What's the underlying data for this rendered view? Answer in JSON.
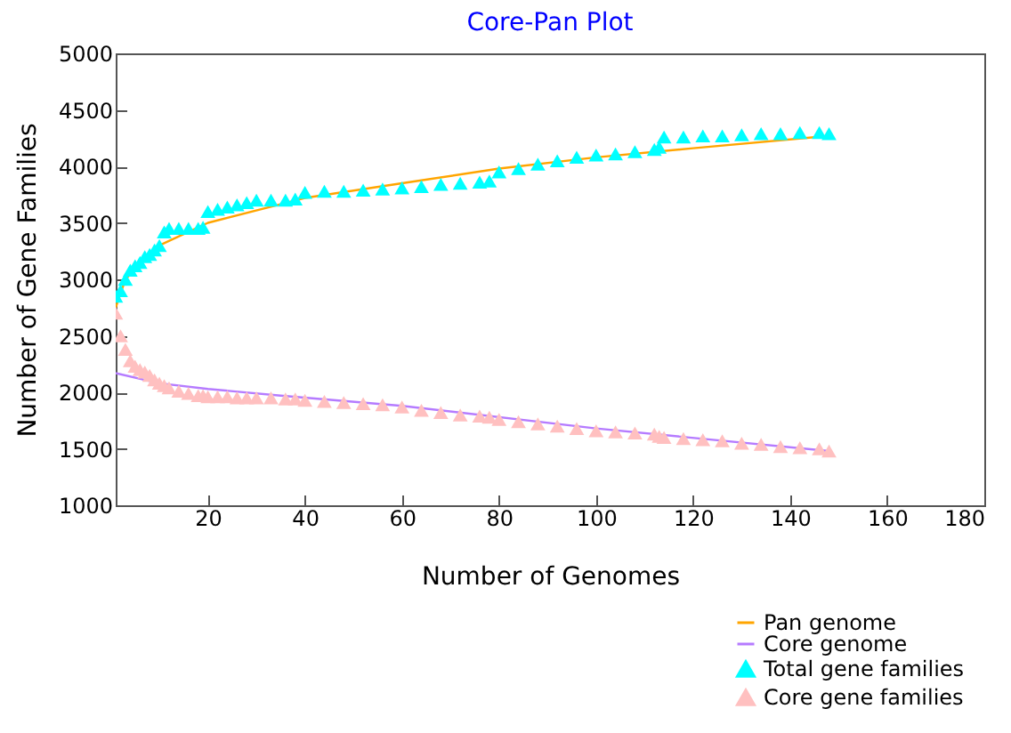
{
  "chart_data": {
    "type": "scatter",
    "title": "Core-Pan Plot",
    "xlabel": "Number of Genomes",
    "ylabel": "Number of Gene Families",
    "xlim": [
      1,
      180
    ],
    "xticks": [
      20,
      40,
      60,
      80,
      100,
      120,
      140,
      160,
      180
    ],
    "ylim": [
      1000,
      5000
    ],
    "yticks": [
      1000,
      1500,
      2000,
      2500,
      3000,
      3500,
      4000,
      4500,
      5000
    ],
    "grid": false,
    "legend": "bottom right",
    "marker": "triangle",
    "x": [
      1,
      2,
      3,
      4,
      5,
      6,
      7,
      8,
      9,
      10,
      11,
      12,
      14,
      16,
      18,
      19,
      20,
      22,
      24,
      26,
      28,
      30,
      33,
      36,
      38,
      40,
      44,
      48,
      52,
      56,
      60,
      64,
      68,
      72,
      76,
      78,
      80,
      84,
      88,
      92,
      96,
      100,
      104,
      108,
      112,
      113,
      114,
      118,
      122,
      126,
      130,
      134,
      138,
      142,
      146,
      148
    ],
    "series": [
      {
        "name": "Pan genome",
        "type": "line",
        "marker": "none",
        "color": "#ffa500",
        "x": [
          1,
          3,
          10,
          20,
          40,
          60,
          80,
          100,
          120,
          148
        ],
        "values": [
          2750,
          3000,
          3300,
          3500,
          3720,
          3850,
          3980,
          4080,
          4160,
          4270
        ]
      },
      {
        "name": "Core genome",
        "type": "line",
        "marker": "none",
        "color": "#b57bff",
        "x": [
          1,
          10,
          20,
          35,
          60,
          100,
          148
        ],
        "values": [
          2170,
          2080,
          2030,
          1970,
          1880,
          1680,
          1480
        ]
      },
      {
        "name": "Total gene families",
        "color": "#00ffff",
        "values": [
          2850,
          2900,
          3000,
          3080,
          3120,
          3150,
          3200,
          3220,
          3260,
          3300,
          3420,
          3450,
          3450,
          3450,
          3450,
          3460,
          3600,
          3620,
          3640,
          3660,
          3680,
          3700,
          3700,
          3700,
          3710,
          3770,
          3780,
          3780,
          3790,
          3800,
          3810,
          3820,
          3840,
          3850,
          3860,
          3870,
          3950,
          3980,
          4020,
          4050,
          4080,
          4100,
          4110,
          4130,
          4150,
          4170,
          4260,
          4260,
          4270,
          4270,
          4280,
          4290,
          4290,
          4300,
          4300,
          4290
        ]
      },
      {
        "name": "Core gene families",
        "color": "#ffc0c0",
        "values": [
          2700,
          2500,
          2380,
          2280,
          2230,
          2200,
          2180,
          2150,
          2110,
          2080,
          2060,
          2040,
          2010,
          1990,
          1970,
          1970,
          1960,
          1960,
          1960,
          1950,
          1950,
          1950,
          1950,
          1940,
          1940,
          1930,
          1920,
          1910,
          1900,
          1890,
          1870,
          1840,
          1820,
          1800,
          1790,
          1780,
          1760,
          1740,
          1720,
          1700,
          1680,
          1660,
          1650,
          1640,
          1630,
          1610,
          1600,
          1590,
          1580,
          1570,
          1550,
          1540,
          1520,
          1510,
          1500,
          1480
        ]
      }
    ]
  }
}
